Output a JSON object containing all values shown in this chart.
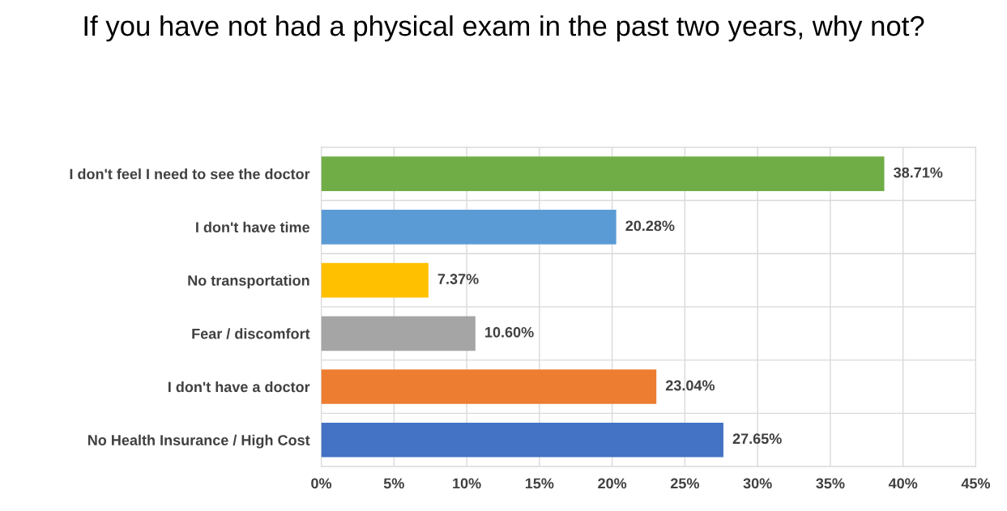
{
  "chart_data": {
    "type": "bar",
    "orientation": "horizontal",
    "title": "If you have not had a physical exam in the past two years, why not?",
    "categories": [
      "I don't feel I need to see the doctor",
      "I don't have time",
      "No transportation",
      "Fear / discomfort",
      "I don't have a doctor",
      "No Health Insurance / High Cost"
    ],
    "values": [
      38.71,
      20.28,
      7.37,
      10.6,
      23.04,
      27.65
    ],
    "value_labels": [
      "38.71%",
      "20.28%",
      "7.37%",
      "10.60%",
      "23.04%",
      "27.65%"
    ],
    "colors": [
      "#70ad47",
      "#5b9bd5",
      "#ffc000",
      "#a5a5a5",
      "#ed7d31",
      "#4472c4"
    ],
    "xlim": [
      0,
      45
    ],
    "xticks": [
      {
        "value": 0,
        "label": "0%"
      },
      {
        "value": 5,
        "label": "5%"
      },
      {
        "value": 10,
        "label": "10%"
      },
      {
        "value": 15,
        "label": "15%"
      },
      {
        "value": 20,
        "label": "20%"
      },
      {
        "value": 25,
        "label": "25%"
      },
      {
        "value": 30,
        "label": "30%"
      },
      {
        "value": 35,
        "label": "35%"
      },
      {
        "value": 40,
        "label": "40%"
      },
      {
        "value": 45,
        "label": "45%"
      }
    ],
    "grid": true,
    "legend": false
  }
}
